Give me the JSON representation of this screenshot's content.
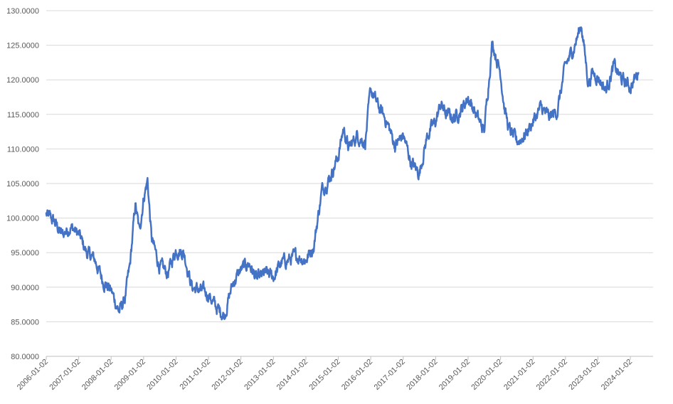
{
  "chart_data": {
    "type": "line",
    "title": "",
    "xlabel": "",
    "ylabel": "",
    "ylim": [
      80,
      130
    ],
    "y_ticks": [
      "80.0000",
      "85.0000",
      "90.0000",
      "95.0000",
      "100.0000",
      "105.0000",
      "110.0000",
      "115.0000",
      "120.0000",
      "125.0000",
      "130.0000"
    ],
    "x_ticks": [
      "2006-01-02",
      "2007-01-02",
      "2008-01-02",
      "2009-01-02",
      "2010-01-02",
      "2011-01-02",
      "2012-01-02",
      "2013-01-02",
      "2014-01-02",
      "2015-01-02",
      "2016-01-02",
      "2017-01-02",
      "2018-01-02",
      "2019-01-02",
      "2020-01-02",
      "2021-01-02",
      "2022-01-02",
      "2023-01-02",
      "2024-01-02"
    ],
    "grid": true,
    "legend": "none",
    "color": "#4472c4",
    "series": [
      {
        "x": [
          "2006-01-02",
          "2006-04-01",
          "2006-07-01",
          "2006-10-01",
          "2007-01-02",
          "2007-04-01",
          "2007-07-01",
          "2007-10-01",
          "2008-01-02",
          "2008-04-01",
          "2008-06-01",
          "2008-08-01",
          "2008-10-01",
          "2008-11-15",
          "2009-01-02",
          "2009-02-15",
          "2009-04-01",
          "2009-07-01",
          "2009-10-01",
          "2010-01-02",
          "2010-04-01",
          "2010-07-01",
          "2010-10-01",
          "2011-01-02",
          "2011-04-01",
          "2011-07-01",
          "2011-10-01",
          "2012-01-02",
          "2012-04-01",
          "2012-07-01",
          "2012-10-01",
          "2013-01-02",
          "2013-04-01",
          "2013-07-01",
          "2013-10-01",
          "2014-01-02",
          "2014-04-01",
          "2014-07-01",
          "2014-10-01",
          "2015-01-02",
          "2015-03-01",
          "2015-05-01",
          "2015-08-01",
          "2015-11-01",
          "2016-01-02",
          "2016-04-01",
          "2016-07-01",
          "2016-10-01",
          "2017-01-02",
          "2017-04-01",
          "2017-07-01",
          "2017-10-01",
          "2018-01-02",
          "2018-03-01",
          "2018-05-01",
          "2018-08-01",
          "2018-11-01",
          "2019-01-02",
          "2019-04-01",
          "2019-07-01",
          "2019-10-01",
          "2020-01-02",
          "2020-02-15",
          "2020-04-01",
          "2020-07-01",
          "2020-10-01",
          "2021-01-02",
          "2021-04-01",
          "2021-07-01",
          "2021-10-01",
          "2022-01-02",
          "2022-04-01",
          "2022-07-01",
          "2022-09-15",
          "2022-11-01",
          "2023-01-02",
          "2023-04-01",
          "2023-07-01",
          "2023-10-01",
          "2024-01-02",
          "2024-04-01"
        ],
        "values": [
          100.5,
          99.5,
          97.5,
          98.8,
          97.6,
          95.0,
          94.0,
          91.0,
          89.5,
          86.5,
          88.0,
          93.0,
          102.0,
          98.0,
          103.0,
          105.5,
          97.0,
          93.0,
          92.0,
          95.5,
          95.0,
          90.0,
          89.5,
          89.0,
          87.0,
          86.0,
          90.5,
          92.5,
          93.5,
          91.0,
          92.0,
          91.5,
          93.5,
          94.0,
          94.5,
          94.0,
          96.0,
          104.0,
          106.0,
          109.0,
          113.0,
          110.0,
          112.0,
          111.0,
          118.5,
          116.0,
          114.0,
          110.5,
          112.0,
          108.0,
          106.5,
          112.0,
          114.0,
          116.5,
          115.0,
          114.5,
          116.0,
          117.5,
          115.0,
          112.5,
          125.5,
          121.0,
          116.0,
          113.0,
          111.0,
          112.0,
          114.0,
          116.0,
          114.5,
          115.5,
          122.0,
          124.5,
          128.0,
          119.5,
          121.0,
          120.5,
          118.5,
          122.0,
          120.0,
          119.0,
          121.0
        ]
      }
    ]
  }
}
